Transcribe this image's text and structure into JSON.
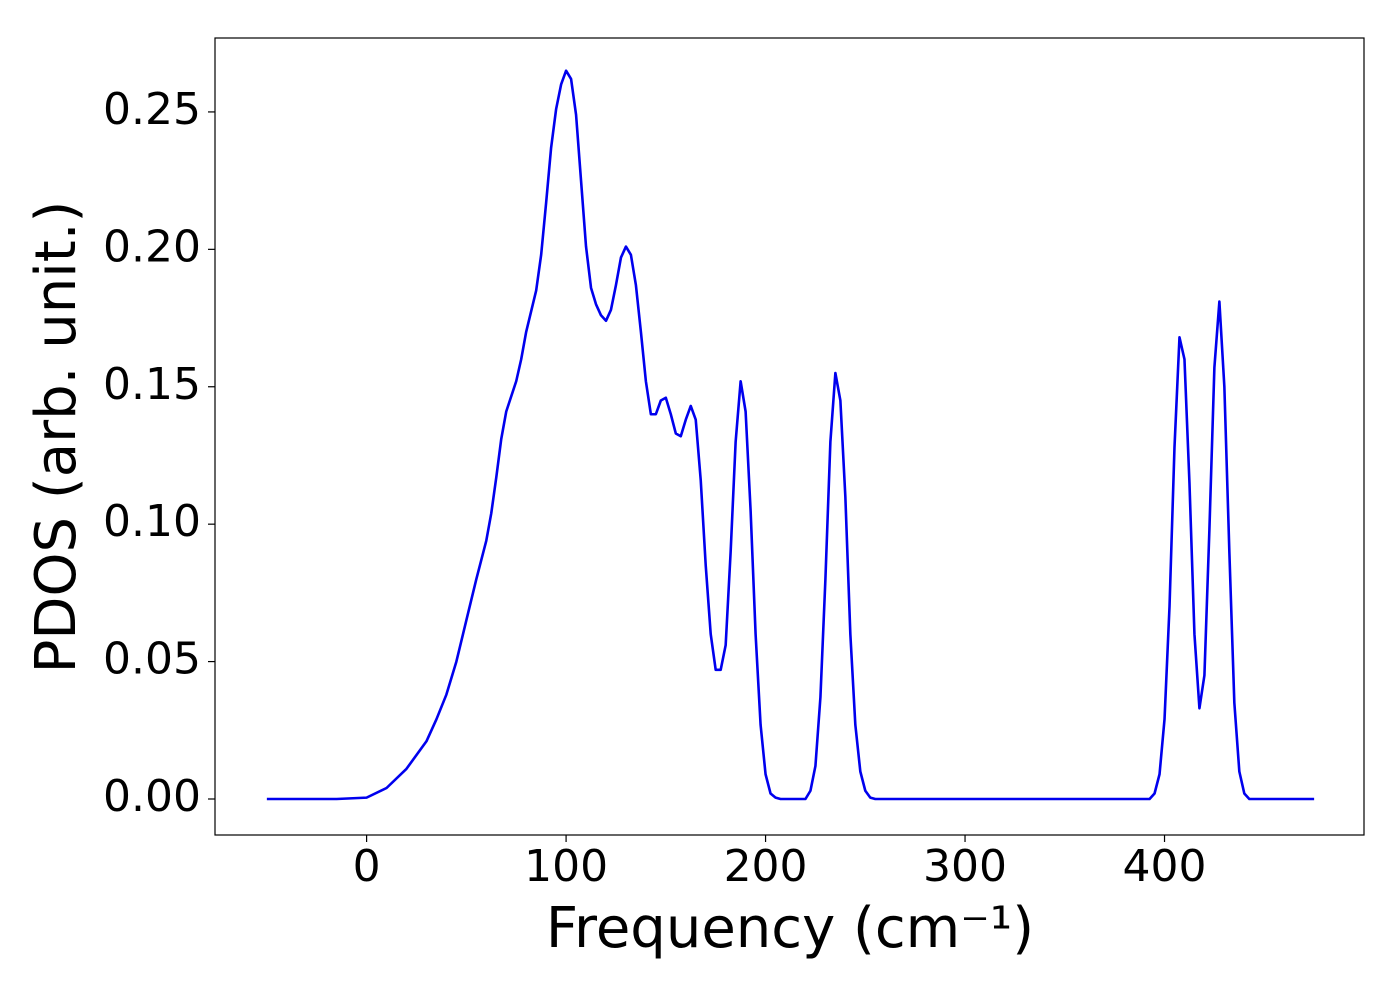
{
  "chart_data": {
    "type": "line",
    "xlabel": "Frequency (cm⁻¹)",
    "ylabel": "PDOS (arb. unit.)",
    "xlim": [
      -76,
      500
    ],
    "ylim": [
      -0.0131,
      0.2769
    ],
    "xticks": [
      0,
      100,
      200,
      300,
      400
    ],
    "yticks": [
      {
        "value": 0,
        "label": "0.00"
      },
      {
        "value": 0.05,
        "label": "0.05"
      },
      {
        "value": 0.1,
        "label": "0.10"
      },
      {
        "value": 0.15,
        "label": "0.15"
      },
      {
        "value": 0.2,
        "label": "0.20"
      },
      {
        "value": 0.25,
        "label": "0.25"
      }
    ],
    "grid": false,
    "series": [
      {
        "color": "#0000ee",
        "x": [
          -50,
          -15,
          0,
          10,
          20,
          30,
          35,
          40,
          45,
          50,
          55,
          60,
          62.5,
          65,
          67.5,
          70,
          75,
          77.5,
          80,
          85,
          87.5,
          90,
          92.5,
          95,
          97.5,
          100,
          102.5,
          105,
          107.5,
          110,
          112.5,
          115,
          117.5,
          120,
          122.5,
          125,
          127.5,
          130,
          132.5,
          135,
          137.5,
          140,
          142.5,
          145,
          147.5,
          150,
          152.5,
          155,
          157.5,
          160,
          162.5,
          165,
          167.5,
          170,
          172.5,
          175,
          177.5,
          180,
          182.5,
          185,
          187.5,
          190,
          192.5,
          195,
          197.5,
          200,
          202.5,
          205,
          207.5,
          220,
          222.5,
          225,
          227.5,
          230,
          232.5,
          235,
          237.5,
          240,
          242.5,
          245,
          247.5,
          250,
          252.5,
          255,
          392.5,
          395,
          397.5,
          400,
          402.5,
          405,
          407.5,
          410,
          412.5,
          415,
          417.5,
          420,
          422.5,
          425,
          427.5,
          430,
          432.5,
          435,
          437.5,
          440,
          442.5,
          475
        ],
        "values": [
          0,
          0,
          0.0005,
          0.004,
          0.011,
          0.021,
          0.029,
          0.038,
          0.05,
          0.065,
          0.08,
          0.094,
          0.104,
          0.117,
          0.131,
          0.141,
          0.152,
          0.16,
          0.17,
          0.185,
          0.198,
          0.217,
          0.237,
          0.251,
          0.26,
          0.265,
          0.262,
          0.249,
          0.225,
          0.201,
          0.186,
          0.18,
          0.176,
          0.174,
          0.178,
          0.187,
          0.197,
          0.201,
          0.198,
          0.187,
          0.17,
          0.152,
          0.14,
          0.14,
          0.145,
          0.146,
          0.14,
          0.133,
          0.132,
          0.138,
          0.143,
          0.138,
          0.116,
          0.085,
          0.06,
          0.047,
          0.047,
          0.056,
          0.09,
          0.13,
          0.152,
          0.141,
          0.105,
          0.06,
          0.027,
          0.009,
          0.002,
          0.0005,
          0,
          0,
          0.003,
          0.012,
          0.037,
          0.08,
          0.13,
          0.155,
          0.145,
          0.11,
          0.06,
          0.027,
          0.01,
          0.003,
          0.0005,
          0,
          0,
          0.002,
          0.009,
          0.029,
          0.07,
          0.128,
          0.168,
          0.16,
          0.115,
          0.06,
          0.033,
          0.045,
          0.098,
          0.157,
          0.181,
          0.15,
          0.09,
          0.035,
          0.01,
          0.002,
          0,
          0
        ]
      }
    ]
  }
}
